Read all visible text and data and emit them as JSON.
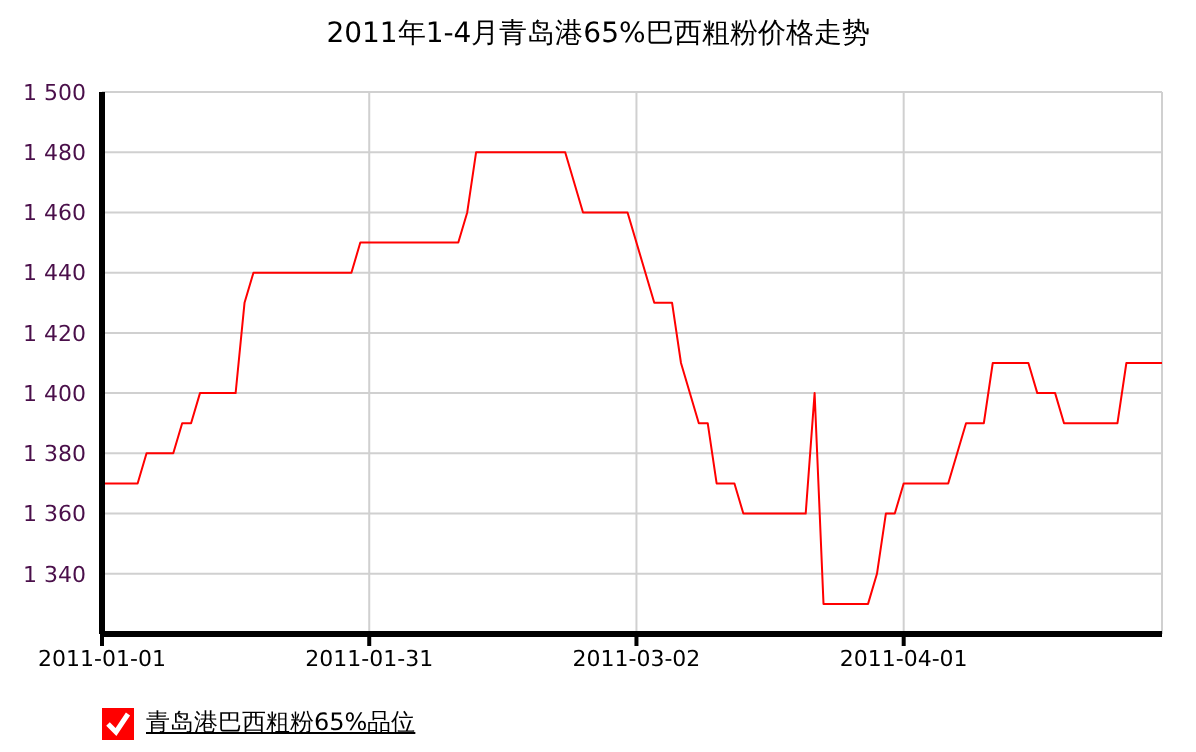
{
  "chart_data": {
    "type": "line",
    "title": "2011年1-4月青岛港65%巴西粗粉价格走势",
    "x": [
      "2011-01-01",
      "2011-01-05",
      "2011-01-06",
      "2011-01-09",
      "2011-01-10",
      "2011-01-11",
      "2011-01-12",
      "2011-01-16",
      "2011-01-17",
      "2011-01-18",
      "2011-01-29",
      "2011-01-30",
      "2011-02-10",
      "2011-02-11",
      "2011-02-12",
      "2011-02-22",
      "2011-02-24",
      "2011-03-01",
      "2011-03-04",
      "2011-03-06",
      "2011-03-07",
      "2011-03-09",
      "2011-03-10",
      "2011-03-11",
      "2011-03-13",
      "2011-03-14",
      "2011-03-21",
      "2011-03-22",
      "2011-03-23",
      "2011-03-28",
      "2011-03-29",
      "2011-03-30",
      "2011-03-31",
      "2011-04-01",
      "2011-04-06",
      "2011-04-08",
      "2011-04-10",
      "2011-04-11",
      "2011-04-15",
      "2011-04-16",
      "2011-04-18",
      "2011-04-19",
      "2011-04-25",
      "2011-04-26",
      "2011-04-30"
    ],
    "series": [
      {
        "name": "青岛港巴西粗粉65%品位",
        "color": "#ff0000",
        "values": [
          1370,
          1370,
          1380,
          1380,
          1390,
          1390,
          1400,
          1400,
          1430,
          1440,
          1440,
          1450,
          1450,
          1460,
          1480,
          1480,
          1460,
          1460,
          1430,
          1430,
          1410,
          1390,
          1390,
          1370,
          1370,
          1360,
          1360,
          1400,
          1330,
          1330,
          1340,
          1360,
          1360,
          1370,
          1370,
          1390,
          1390,
          1410,
          1410,
          1400,
          1400,
          1390,
          1390,
          1410,
          1410
        ]
      }
    ],
    "xlim": [
      "2011-01-01",
      "2011-04-30"
    ],
    "xticks": [
      "2011-01-01",
      "2011-01-31",
      "2011-03-02",
      "2011-04-01"
    ],
    "ylim": [
      1320,
      1500
    ],
    "yticks": [
      {
        "value": 1340,
        "label": "1 340"
      },
      {
        "value": 1360,
        "label": "1 360"
      },
      {
        "value": 1380,
        "label": "1 380"
      },
      {
        "value": 1400,
        "label": "1 400"
      },
      {
        "value": 1420,
        "label": "1 420"
      },
      {
        "value": 1440,
        "label": "1 440"
      },
      {
        "value": 1460,
        "label": "1 460"
      },
      {
        "value": 1480,
        "label": "1 480"
      },
      {
        "value": 1500,
        "label": "1 500"
      }
    ],
    "grid": true,
    "legend": "bottom left"
  }
}
